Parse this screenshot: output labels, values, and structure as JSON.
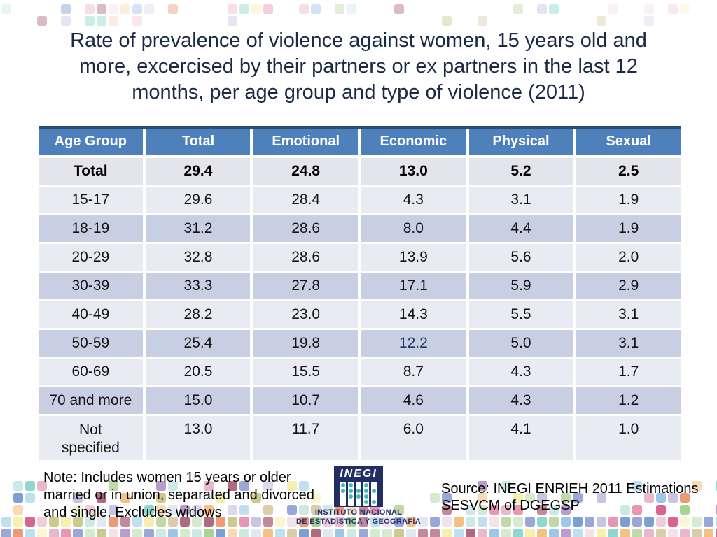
{
  "title": {
    "lines": [
      "Rate of prevalence of violence against women, 15 years old and",
      "more, excercised by their partners or ex partners in the last 12",
      "months, per age group and type of violence (2011)"
    ]
  },
  "table": {
    "headers": [
      "Age Group",
      "Total",
      "Emotional",
      "Economic",
      "Physical",
      "Sexual"
    ],
    "rows": [
      {
        "label": "Total",
        "values": [
          "29.4",
          "24.8",
          "13.0",
          "5.2",
          "2.5"
        ]
      },
      {
        "label": "15-17",
        "values": [
          "29.6",
          "28.4",
          "4.3",
          "3.1",
          "1.9"
        ]
      },
      {
        "label": "18-19",
        "values": [
          "31.2",
          "28.6",
          "8.0",
          "4.4",
          "1.9"
        ]
      },
      {
        "label": "20-29",
        "values": [
          "32.8",
          "28.6",
          "13.9",
          "5.6",
          "2.0"
        ]
      },
      {
        "label": "30-39",
        "values": [
          "33.3",
          "27.8",
          "17.1",
          "5.9",
          "2.9"
        ]
      },
      {
        "label": "40-49",
        "values": [
          "28.2",
          "23.0",
          "14.3",
          "5.5",
          "3.1"
        ]
      },
      {
        "label": "50-59",
        "values": [
          "25.4",
          "19.8",
          "12.2",
          "5.0",
          "3.1"
        ]
      },
      {
        "label": "60-69",
        "values": [
          "20.5",
          "15.5",
          "8.7",
          "4.3",
          "1.7"
        ]
      },
      {
        "label": "70 and more",
        "values": [
          "15.0",
          "10.7",
          "4.6",
          "4.3",
          "1.2"
        ]
      },
      {
        "label": "Not specified",
        "values": [
          "13.0",
          "11.7",
          "6.0",
          "4.1",
          "1.0"
        ]
      }
    ],
    "highlight_color": "#1f3864"
  },
  "chart_data": {
    "type": "table",
    "title": "Rate of prevalence of violence against women, 15 years old and more, excercised by their partners or ex partners in the last 12 months, per age group and type of violence (2011)",
    "columns": [
      "Age Group",
      "Total",
      "Emotional",
      "Economic",
      "Physical",
      "Sexual"
    ],
    "rows": [
      [
        "Total",
        29.4,
        24.8,
        13.0,
        5.2,
        2.5
      ],
      [
        "15-17",
        29.6,
        28.4,
        4.3,
        3.1,
        1.9
      ],
      [
        "18-19",
        31.2,
        28.6,
        8.0,
        4.4,
        1.9
      ],
      [
        "20-29",
        32.8,
        28.6,
        13.9,
        5.6,
        2.0
      ],
      [
        "30-39",
        33.3,
        27.8,
        17.1,
        5.9,
        2.9
      ],
      [
        "40-49",
        28.2,
        23.0,
        14.3,
        5.5,
        3.1
      ],
      [
        "50-59",
        25.4,
        19.8,
        12.2,
        5.0,
        3.1
      ],
      [
        "60-69",
        20.5,
        15.5,
        8.7,
        4.3,
        1.7
      ],
      [
        "70 and more",
        15.0,
        10.7,
        4.6,
        4.3,
        1.2
      ],
      [
        "Not specified",
        13.0,
        11.7,
        6.0,
        4.1,
        1.0
      ]
    ]
  },
  "note": {
    "lines": [
      "Note: Includes women 15 years or older",
      "married or in union, separated and divorced",
      "and single. Excludes widows"
    ]
  },
  "source": {
    "lines": [
      "Source: INEGI ENRIEH 2011 Estimations",
      "SESVCM of DGEGSP"
    ]
  },
  "logo": {
    "word": "INEGI",
    "caption_line1": "INSTITUTO NACIONAL",
    "caption_line2": "DE ESTADÍSTICA Y GEOGRAFÍA"
  },
  "colors": {
    "header_bg": "#4e80bc",
    "header_top_border": "#2b4b72",
    "band_light": "#e9ebf2",
    "band_dark": "#c9cfe2",
    "total_row_bg": "#e4e5ec",
    "title_text": "#1b2a44",
    "highlight_value_text": "#1f3864",
    "logo_bg": "#222d63",
    "logo_caption_text": "#233070"
  }
}
